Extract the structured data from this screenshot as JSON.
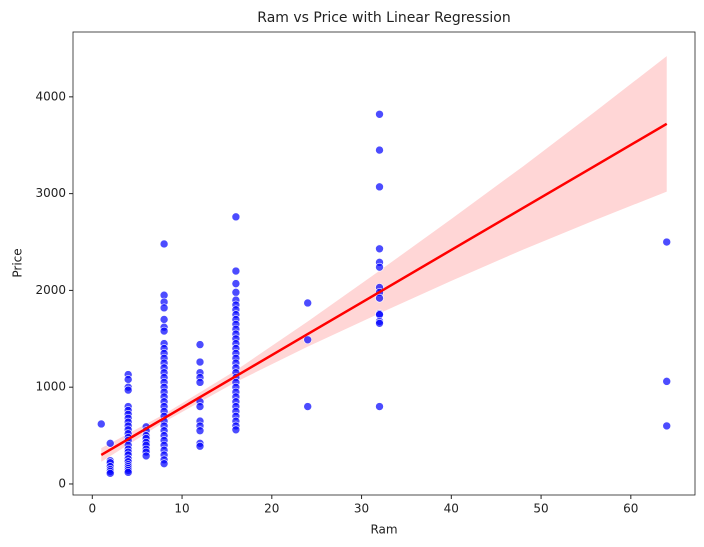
{
  "chart_data": {
    "type": "scatter",
    "title": "Ram vs Price with Linear Regression",
    "x_label": "Ram",
    "y_label": "Price",
    "color": "#0000ff",
    "x": [
      1,
      2,
      2,
      2,
      2,
      2,
      2,
      2,
      4,
      4,
      4,
      4,
      4,
      4,
      4,
      4,
      4,
      4,
      4,
      4,
      4,
      4,
      4,
      4,
      4,
      4,
      4,
      4,
      4,
      4,
      4,
      4,
      4,
      6,
      6,
      6,
      6,
      6,
      6,
      6,
      6,
      6,
      8,
      8,
      8,
      8,
      8,
      8,
      8,
      8,
      8,
      8,
      8,
      8,
      8,
      8,
      8,
      8,
      8,
      8,
      8,
      8,
      8,
      8,
      8,
      8,
      8,
      8,
      8,
      8,
      8,
      8,
      8,
      8,
      8,
      12,
      12,
      12,
      12,
      12,
      12,
      12,
      12,
      12,
      12,
      12,
      12,
      16,
      16,
      16,
      16,
      16,
      16,
      16,
      16,
      16,
      16,
      16,
      16,
      16,
      16,
      16,
      16,
      16,
      16,
      16,
      16,
      16,
      16,
      16,
      16,
      16,
      16,
      16,
      16,
      16,
      16,
      16,
      16,
      24,
      24,
      24,
      32,
      32,
      32,
      32,
      32,
      32,
      32,
      32,
      32,
      32,
      32,
      32,
      32,
      32,
      64,
      64,
      64
    ],
    "values": [
      620,
      420,
      240,
      220,
      180,
      150,
      130,
      110,
      1130,
      1080,
      1000,
      970,
      800,
      760,
      720,
      680,
      640,
      600,
      560,
      520,
      480,
      450,
      400,
      360,
      330,
      300,
      260,
      230,
      200,
      180,
      160,
      140,
      120,
      590,
      550,
      500,
      470,
      430,
      400,
      360,
      330,
      290,
      2480,
      1950,
      1880,
      1820,
      1700,
      1620,
      1580,
      1450,
      1400,
      1350,
      1300,
      1250,
      1200,
      1150,
      1100,
      1050,
      1000,
      950,
      900,
      850,
      800,
      750,
      700,
      650,
      600,
      550,
      500,
      450,
      400,
      350,
      300,
      250,
      210,
      1440,
      1260,
      1150,
      1100,
      1050,
      850,
      800,
      650,
      600,
      550,
      420,
      390,
      2760,
      2200,
      2070,
      1980,
      1900,
      1850,
      1800,
      1750,
      1700,
      1650,
      1600,
      1550,
      1500,
      1450,
      1400,
      1350,
      1300,
      1250,
      1200,
      1150,
      1100,
      1050,
      1000,
      950,
      900,
      850,
      800,
      750,
      700,
      650,
      600,
      560,
      1870,
      1490,
      800,
      3820,
      3450,
      3070,
      2430,
      2290,
      2240,
      2030,
      1980,
      1920,
      1760,
      1750,
      1680,
      1660,
      800,
      2500,
      1060,
      600
    ],
    "regression": {
      "color": "#ff0000",
      "band_color": "#ffd6d6",
      "x": [
        1,
        8,
        16,
        24,
        32,
        40,
        48,
        56,
        64
      ],
      "values": [
        300,
        680,
        1114,
        1549,
        1983,
        2418,
        2852,
        3286,
        3721
      ],
      "lower": [
        230,
        640,
        1054,
        1419,
        1763,
        2098,
        2422,
        2726,
        3021
      ],
      "upper": [
        370,
        720,
        1174,
        1679,
        2203,
        2738,
        3282,
        3846,
        4421
      ]
    },
    "xlim": [
      -2.15,
      67.15
    ],
    "ylim": [
      -114,
      4670
    ],
    "xticks": [
      0,
      10,
      20,
      30,
      40,
      50,
      60
    ],
    "yticks": [
      0,
      1000,
      2000,
      3000,
      4000
    ],
    "grid": false
  }
}
